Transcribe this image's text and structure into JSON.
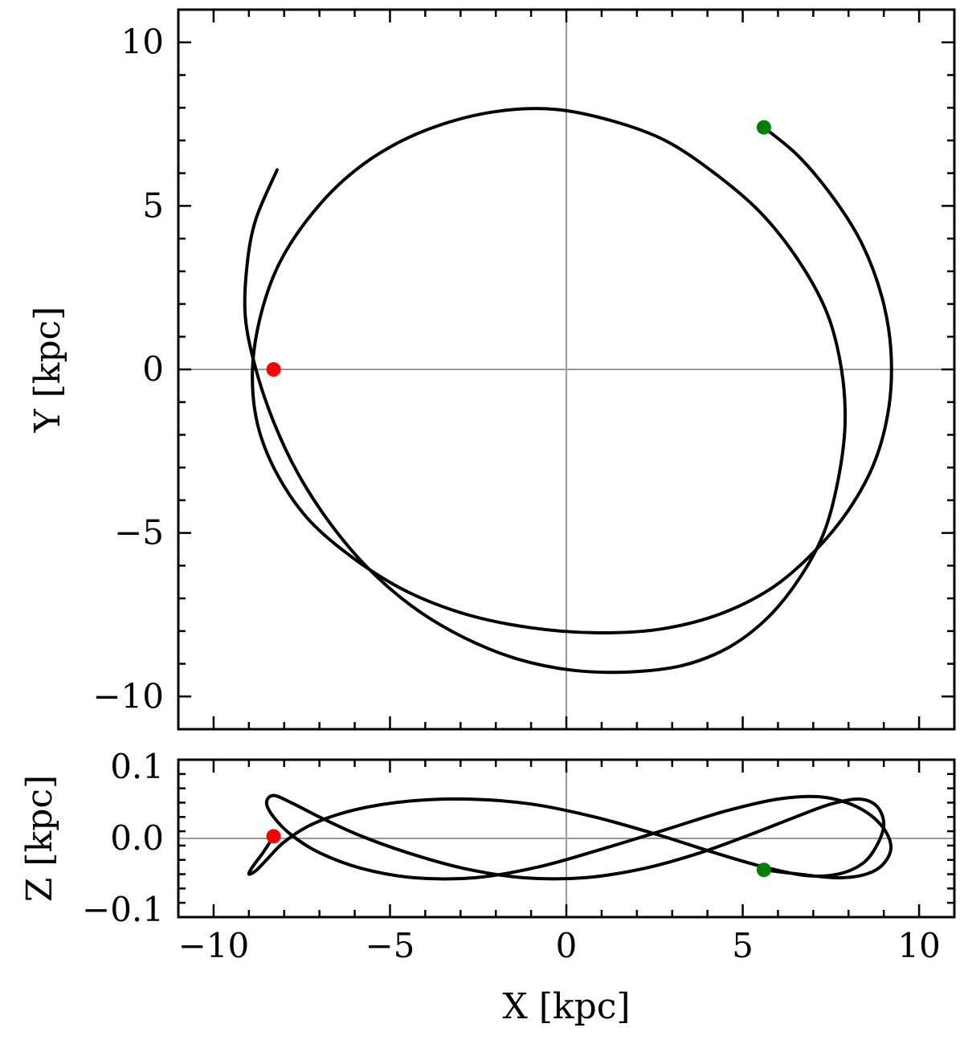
{
  "chart_data": [
    {
      "type": "line",
      "panel": "top",
      "xlabel": "",
      "ylabel": "Y [kpc]",
      "xlim": [
        -11,
        11
      ],
      "ylim": [
        -11,
        11
      ],
      "yticks": [
        -10,
        -5,
        0,
        5,
        10
      ],
      "yticklabels": [
        "−10",
        "−5",
        "0",
        "5",
        "10"
      ],
      "xticks": [
        -10,
        -5,
        0,
        5,
        10
      ],
      "zero_lines": true,
      "grid": false,
      "series": [
        {
          "line_color": "#000000",
          "x": [
            5.6,
            6.6,
            7.6,
            8.4,
            8.95,
            9.2,
            9.15,
            8.75,
            8.0,
            7.0,
            5.8,
            4.3,
            2.6,
            0.8,
            -1.0,
            -2.8,
            -4.5,
            -6.0,
            -7.3,
            -8.2,
            -8.75,
            -8.9,
            -8.7,
            -8.2,
            -7.4,
            -6.3,
            -5.0,
            -3.5,
            -1.9,
            -0.3,
            1.3,
            2.8,
            4.2,
            5.5,
            6.6,
            7.4,
            7.8,
            7.9,
            7.7,
            7.3,
            6.6,
            5.7,
            4.6,
            3.3,
            1.8,
            0.2,
            -1.4,
            -2.9,
            -4.3,
            -5.6,
            -6.7,
            -7.6,
            -8.3,
            -8.8,
            -9.1,
            -9.05,
            -8.8,
            -8.2
          ],
          "y": [
            7.4,
            6.5,
            5.2,
            3.8,
            2.2,
            0.6,
            -1.1,
            -2.8,
            -4.3,
            -5.6,
            -6.7,
            -7.5,
            -7.95,
            -8.05,
            -7.9,
            -7.5,
            -6.8,
            -5.8,
            -4.6,
            -3.2,
            -1.7,
            -0.1,
            1.5,
            3.1,
            4.5,
            5.8,
            6.8,
            7.5,
            7.9,
            7.95,
            7.6,
            7.0,
            6.0,
            4.8,
            3.3,
            1.7,
            0.0,
            -1.7,
            -3.4,
            -5.0,
            -6.4,
            -7.6,
            -8.5,
            -9.05,
            -9.25,
            -9.2,
            -8.85,
            -8.2,
            -7.3,
            -6.1,
            -4.7,
            -3.2,
            -1.6,
            0.0,
            1.6,
            3.2,
            4.6,
            6.1
          ]
        }
      ],
      "markers": [
        {
          "x": -8.3,
          "y": 0.0,
          "color": "#ff0000"
        },
        {
          "x": 5.6,
          "y": 7.4,
          "color": "#008000"
        }
      ]
    },
    {
      "type": "line",
      "panel": "bottom",
      "xlabel": "X [kpc]",
      "ylabel": "Z [kpc]",
      "xlim": [
        -11,
        11
      ],
      "ylim": [
        -0.11,
        0.11
      ],
      "yticks": [
        -0.1,
        0.0,
        0.1
      ],
      "yticklabels": [
        "−0.1",
        "0.0",
        "0.1"
      ],
      "xticks": [
        -10,
        -5,
        0,
        5,
        10
      ],
      "xticklabels": [
        "−10",
        "−5",
        "0",
        "5",
        "10"
      ],
      "zero_lines": true,
      "grid": false,
      "series": [
        {
          "line_color": "#000000",
          "x": [
            -8.3,
            -8.6,
            -8.9,
            -9.0,
            -8.8,
            -8.5,
            -8.0,
            -7.2,
            -6.0,
            -4.5,
            -2.8,
            -1.0,
            0.8,
            2.6,
            4.2,
            5.6,
            6.8,
            7.7,
            8.4,
            8.8,
            9.0,
            8.8,
            8.3,
            7.5,
            6.5,
            5.2,
            3.8,
            2.2,
            0.5,
            -1.2,
            -2.9,
            -4.5,
            -5.9,
            -7.0,
            -7.8,
            -8.3,
            -8.5,
            -8.3,
            -7.8,
            -7.0,
            -5.8,
            -4.3,
            -2.6,
            -0.8,
            1.0,
            2.8,
            4.5,
            6.0,
            7.2,
            8.2,
            8.9,
            9.2,
            9.0,
            8.5,
            7.7,
            6.6,
            5.6
          ],
          "y": [
            0.003,
            -0.02,
            -0.04,
            -0.05,
            -0.045,
            -0.03,
            -0.005,
            0.02,
            0.04,
            0.052,
            0.055,
            0.048,
            0.03,
            0.005,
            -0.02,
            -0.04,
            -0.052,
            -0.05,
            -0.035,
            -0.01,
            0.02,
            0.045,
            0.055,
            0.048,
            0.03,
            0.005,
            -0.02,
            -0.042,
            -0.055,
            -0.055,
            -0.042,
            -0.02,
            0.005,
            0.03,
            0.05,
            0.06,
            0.05,
            0.03,
            0.005,
            -0.02,
            -0.042,
            -0.055,
            -0.055,
            -0.04,
            -0.015,
            0.012,
            0.038,
            0.055,
            0.058,
            0.045,
            0.02,
            -0.01,
            -0.035,
            -0.05,
            -0.055,
            -0.05,
            -0.044
          ]
        }
      ],
      "markers": [
        {
          "x": -8.3,
          "y": 0.003,
          "color": "#ff0000"
        },
        {
          "x": 5.6,
          "y": -0.044,
          "color": "#008000"
        }
      ]
    }
  ]
}
